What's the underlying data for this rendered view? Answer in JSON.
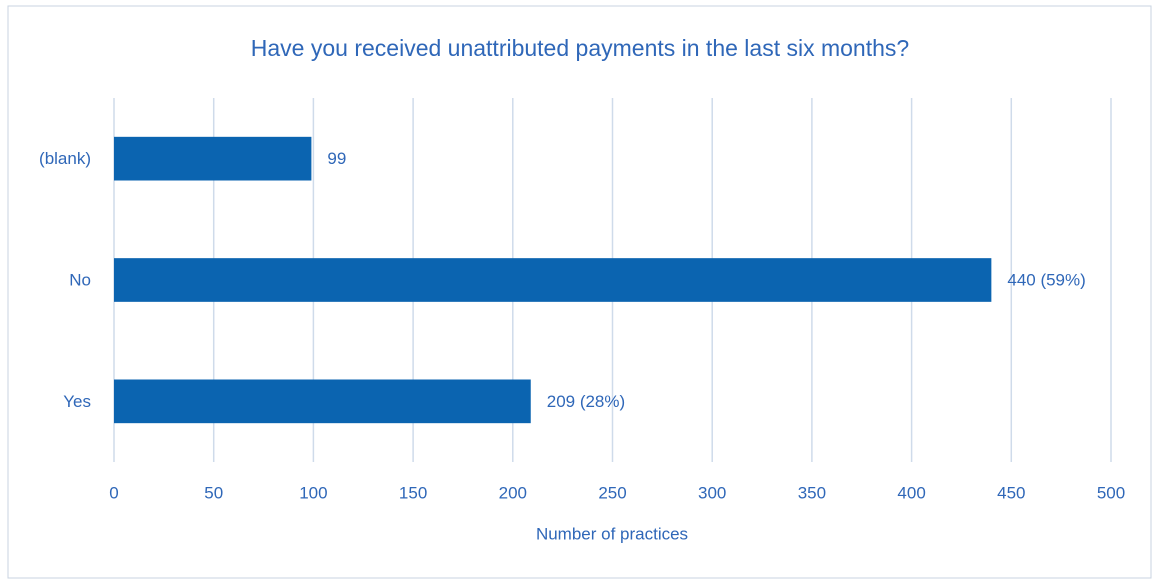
{
  "chart_data": {
    "type": "barh",
    "title": "Have you received unattributed payments in the last six months?",
    "x_label": "Number of practices",
    "categories": [
      "(blank)",
      "No",
      "Yes"
    ],
    "values": [
      99,
      440,
      209
    ],
    "value_labels": [
      "99",
      "440 (59%)",
      "209 (28%)"
    ],
    "color": "#0b64b0",
    "xlim": [
      0,
      500
    ],
    "xticks": [
      0,
      50,
      100,
      150,
      200,
      250,
      300,
      350,
      400,
      450,
      500
    ],
    "grid": true
  }
}
